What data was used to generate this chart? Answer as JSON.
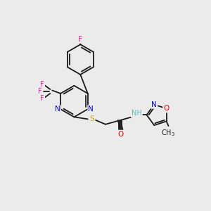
{
  "bg_color": "#ebebeb",
  "bond_color": "#1a1a1a",
  "colors": {
    "F": "#ff1aaa",
    "N": "#0000ee",
    "O": "#ee0000",
    "S": "#ccaa00",
    "H": "#5fbfbf",
    "C": "#1a1a1a"
  },
  "font_size": 7.5,
  "lw": 1.3
}
